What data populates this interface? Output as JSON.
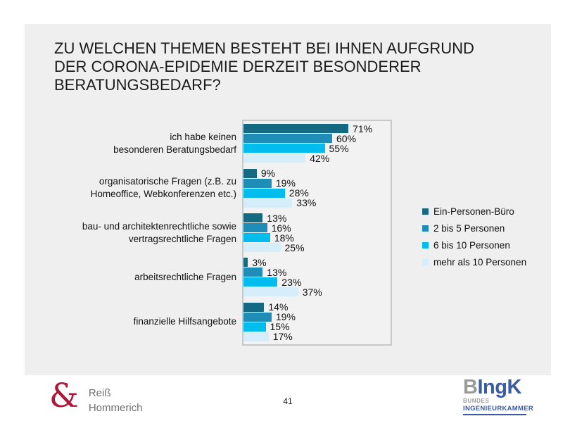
{
  "slide": {
    "title": "ZU WELCHEN THEMEN BESTEHT BEI IHNEN AUFGRUND\nDER CORONA-EPIDEMIE DERZEIT BESONDERER\nBERATUNGSBEDARF?",
    "page_number": "41",
    "background_color": "#efefef"
  },
  "chart_data": {
    "type": "bar",
    "orientation": "horizontal",
    "title": "",
    "xlabel": "",
    "ylabel": "",
    "xlim": [
      0,
      100
    ],
    "grid": false,
    "legend_position": "right",
    "value_suffix": "%",
    "categories": [
      "ich habe keinen\nbesonderen Beratungsbedarf",
      "organisatorische Fragen (z.B. zu\nHomeoffice, Webkonferenzen etc.)",
      "bau- und architektenrechtliche sowie\nvertragsrechtliche Fragen",
      "arbeitsrechtliche Fragen",
      "finanzielle Hilfsangebote"
    ],
    "series": [
      {
        "name": "Ein-Personen-Büro",
        "color": "#136a82",
        "values": [
          71,
          9,
          13,
          3,
          14
        ]
      },
      {
        "name": "2 bis 5 Personen",
        "color": "#1e8eb8",
        "values": [
          60,
          19,
          16,
          13,
          19
        ]
      },
      {
        "name": "6 bis 10 Personen",
        "color": "#00bdee",
        "values": [
          55,
          28,
          18,
          23,
          15
        ]
      },
      {
        "name": "mehr als 10 Personen",
        "color": "#d6edfa",
        "values": [
          42,
          33,
          25,
          37,
          17
        ]
      }
    ]
  },
  "footer": {
    "left_logo": {
      "ampersand": "&",
      "line1": "Reiß",
      "line2": "Hommerich",
      "accent_color": "#b0173a"
    },
    "right_logo": {
      "main_gray": "B",
      "main_blue": "IngK",
      "sub_gray": "BUNDES",
      "sub_blue": "INGENIEURKAMMER",
      "blue": "#3b5ba5",
      "gray": "#9a9a9a"
    }
  }
}
